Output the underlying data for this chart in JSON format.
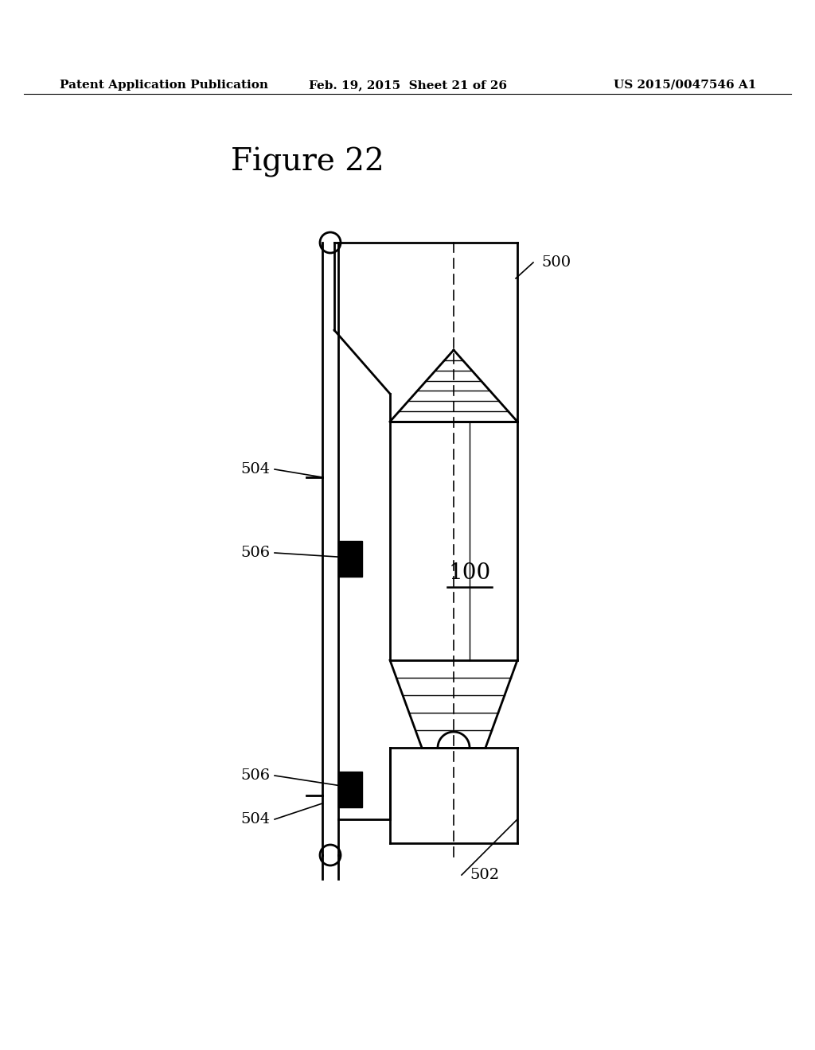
{
  "title": "Figure 22",
  "header_left": "Patent Application Publication",
  "header_mid": "Feb. 19, 2015  Sheet 21 of 26",
  "header_right": "US 2015/0047546 A1",
  "background": "#ffffff",
  "line_color": "#000000",
  "label_500": "500",
  "label_504_top": "504",
  "label_506_top": "506",
  "label_100": "100",
  "label_506_bot": "506",
  "label_504_bot": "504",
  "label_502": "502",
  "fig_title_fontsize": 28,
  "header_fontsize": 11,
  "label_fontsize": 14
}
